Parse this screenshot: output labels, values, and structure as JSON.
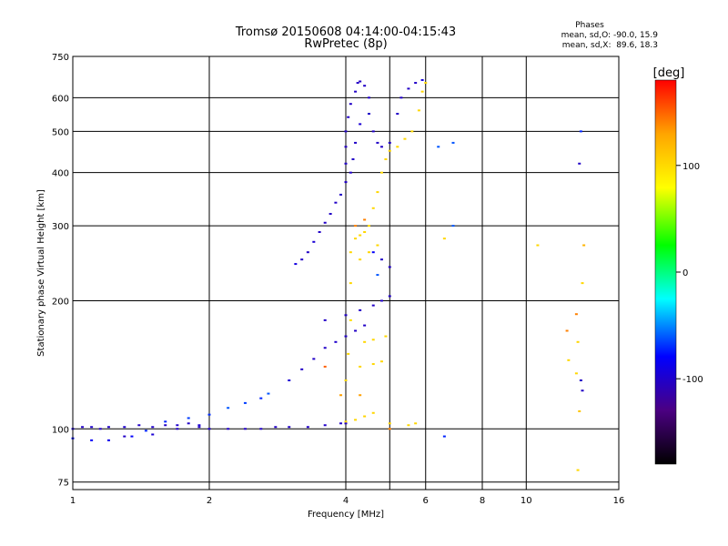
{
  "title_line1": "Tromsø 20150608 04:14:00-04:15:43",
  "title_line2": "RwPretec (8p)",
  "phase_box": {
    "heading": "Phases",
    "line_o": "mean, sd,O: -90.0, 15.9",
    "line_x": "mean, sd,X:  89.6, 18.3"
  },
  "colorbar": {
    "label": "[deg]",
    "range": [
      -180,
      180
    ],
    "ticks": [
      {
        "value": 100,
        "label": "100"
      },
      {
        "value": 0,
        "label": "0"
      },
      {
        "value": -100,
        "label": "-100"
      }
    ],
    "stops": [
      "#000000",
      "#4b0082",
      "#0000ff",
      "#00ffff",
      "#00ff00",
      "#ffff00",
      "#ffa500",
      "#ff0000"
    ]
  },
  "chart_data": {
    "type": "scatter",
    "title": "Tromsø 20150608 04:14:00-04:15:43",
    "subtitle": "RwPretec (8p)",
    "xlabel": "Frequency [MHz]",
    "ylabel": "Stationary phase Virtual Height [km]",
    "xscale": "log",
    "yscale": "log",
    "xlim": [
      1,
      16
    ],
    "ylim": [
      72,
      750
    ],
    "xticks": [
      {
        "value": 1,
        "label": "1"
      },
      {
        "value": 2,
        "label": "2"
      },
      {
        "value": 4,
        "label": "4"
      },
      {
        "value": 6,
        "label": "6"
      },
      {
        "value": 8,
        "label": "8"
      },
      {
        "value": 10,
        "label": "10"
      },
      {
        "value": 16,
        "label": "16"
      }
    ],
    "yticks": [
      {
        "value": 75,
        "label": "75"
      },
      {
        "value": 100,
        "label": "100"
      },
      {
        "value": 200,
        "label": "200"
      },
      {
        "value": 300,
        "label": "300"
      },
      {
        "value": 400,
        "label": "400"
      },
      {
        "value": 500,
        "label": "500"
      },
      {
        "value": 600,
        "label": "600"
      },
      {
        "value": 750,
        "label": "750"
      }
    ],
    "extra_vgrid": [
      5
    ],
    "grid": true,
    "color_scale": "phase (deg)",
    "points": [
      [
        1.0,
        100,
        -95
      ],
      [
        1.05,
        101,
        -100
      ],
      [
        1.1,
        101,
        -98
      ],
      [
        1.15,
        100,
        -102
      ],
      [
        1.2,
        101,
        -100
      ],
      [
        1.3,
        101,
        -97
      ],
      [
        1.4,
        102,
        -100
      ],
      [
        1.5,
        101,
        -99
      ],
      [
        1.6,
        102,
        -100
      ],
      [
        1.7,
        102,
        -98
      ],
      [
        1.8,
        103,
        -100
      ],
      [
        1.9,
        102,
        -96
      ],
      [
        2.0,
        100,
        -100
      ],
      [
        2.2,
        100,
        -100
      ],
      [
        2.4,
        100,
        -101
      ],
      [
        2.6,
        100,
        -100
      ],
      [
        2.8,
        101,
        -100
      ],
      [
        3.0,
        101,
        -100
      ],
      [
        3.3,
        101,
        -100
      ],
      [
        3.6,
        102,
        -99
      ],
      [
        3.9,
        103,
        -100
      ],
      [
        4.0,
        103,
        -100
      ],
      [
        1.0,
        95,
        -75
      ],
      [
        1.1,
        94,
        -80
      ],
      [
        1.2,
        94,
        -85
      ],
      [
        1.35,
        96,
        -78
      ],
      [
        1.45,
        99,
        -70
      ],
      [
        1.6,
        104,
        -70
      ],
      [
        1.8,
        106,
        -65
      ],
      [
        2.0,
        108,
        -68
      ],
      [
        2.2,
        112,
        -60
      ],
      [
        2.4,
        115,
        -65
      ],
      [
        2.6,
        118,
        -70
      ],
      [
        2.7,
        121,
        -60
      ],
      [
        1.3,
        96,
        -100
      ],
      [
        1.5,
        97,
        -95
      ],
      [
        1.7,
        100,
        -100
      ],
      [
        1.9,
        101,
        -100
      ],
      [
        3.0,
        130,
        -95
      ],
      [
        3.2,
        138,
        -100
      ],
      [
        3.4,
        146,
        -100
      ],
      [
        3.6,
        155,
        -100
      ],
      [
        3.8,
        160,
        -98
      ],
      [
        4.0,
        165,
        -100
      ],
      [
        4.2,
        170,
        -100
      ],
      [
        4.4,
        175,
        -100
      ],
      [
        3.1,
        244,
        -90
      ],
      [
        3.2,
        250,
        -100
      ],
      [
        3.3,
        260,
        -100
      ],
      [
        3.4,
        275,
        -95
      ],
      [
        3.5,
        290,
        -100
      ],
      [
        3.6,
        305,
        -100
      ],
      [
        3.7,
        320,
        -100
      ],
      [
        3.8,
        340,
        -100
      ],
      [
        3.9,
        355,
        -100
      ],
      [
        4.0,
        380,
        -100
      ],
      [
        4.0,
        420,
        -100
      ],
      [
        4.0,
        460,
        -102
      ],
      [
        4.0,
        500,
        -100
      ],
      [
        4.05,
        540,
        -100
      ],
      [
        4.1,
        580,
        -100
      ],
      [
        4.2,
        620,
        -100
      ],
      [
        4.25,
        650,
        -100
      ],
      [
        4.3,
        655,
        -102
      ],
      [
        4.4,
        640,
        -100
      ],
      [
        4.5,
        600,
        -100
      ],
      [
        4.5,
        550,
        -100
      ],
      [
        4.6,
        500,
        -100
      ],
      [
        4.7,
        470,
        -100
      ],
      [
        4.8,
        460,
        -100
      ],
      [
        5.0,
        470,
        -100
      ],
      [
        5.2,
        550,
        -100
      ],
      [
        5.3,
        600,
        -100
      ],
      [
        5.5,
        630,
        -100
      ],
      [
        5.7,
        650,
        -100
      ],
      [
        5.9,
        660,
        -90
      ],
      [
        4.1,
        400,
        -100
      ],
      [
        4.15,
        430,
        -100
      ],
      [
        4.2,
        470,
        -100
      ],
      [
        4.3,
        520,
        -95
      ],
      [
        4.6,
        260,
        -80
      ],
      [
        4.8,
        250,
        -100
      ],
      [
        5.0,
        240,
        -100
      ],
      [
        4.7,
        230,
        -60
      ],
      [
        3.6,
        180,
        -100
      ],
      [
        4.0,
        185,
        -100
      ],
      [
        4.3,
        190,
        -100
      ],
      [
        4.6,
        195,
        -100
      ],
      [
        4.8,
        200,
        -100
      ],
      [
        5.0,
        205,
        -100
      ],
      [
        4.0,
        104,
        100
      ],
      [
        4.2,
        105,
        100
      ],
      [
        4.4,
        107,
        102
      ],
      [
        4.6,
        109,
        100
      ],
      [
        5.0,
        103,
        100
      ],
      [
        5.5,
        102,
        100
      ],
      [
        5.7,
        103,
        100
      ],
      [
        4.0,
        130,
        100
      ],
      [
        4.05,
        150,
        100
      ],
      [
        4.1,
        180,
        95
      ],
      [
        4.1,
        220,
        100
      ],
      [
        4.1,
        260,
        100
      ],
      [
        4.2,
        280,
        100
      ],
      [
        4.3,
        285,
        100
      ],
      [
        4.4,
        290,
        100
      ],
      [
        4.5,
        300,
        100
      ],
      [
        4.6,
        330,
        100
      ],
      [
        4.7,
        360,
        100
      ],
      [
        4.8,
        400,
        100
      ],
      [
        4.9,
        430,
        100
      ],
      [
        5.0,
        450,
        100
      ],
      [
        5.2,
        460,
        100
      ],
      [
        5.4,
        480,
        100
      ],
      [
        5.6,
        500,
        100
      ],
      [
        5.8,
        560,
        100
      ],
      [
        5.9,
        620,
        100
      ],
      [
        6.0,
        650,
        100
      ],
      [
        4.3,
        140,
        100
      ],
      [
        4.6,
        142,
        100
      ],
      [
        4.8,
        144,
        100
      ],
      [
        4.4,
        160,
        100
      ],
      [
        4.6,
        162,
        100
      ],
      [
        4.9,
        165,
        100
      ],
      [
        4.3,
        250,
        100
      ],
      [
        4.5,
        260,
        100
      ],
      [
        4.7,
        270,
        100
      ],
      [
        4.2,
        300,
        140
      ],
      [
        4.4,
        310,
        140
      ],
      [
        3.6,
        140,
        150
      ],
      [
        3.9,
        120,
        130
      ],
      [
        4.3,
        120,
        130
      ],
      [
        5.0,
        100,
        140
      ],
      [
        6.4,
        460,
        -60
      ],
      [
        6.6,
        280,
        100
      ],
      [
        6.9,
        300,
        -60
      ],
      [
        6.6,
        96,
        -70
      ],
      [
        6.9,
        470,
        -60
      ],
      [
        10.6,
        270,
        100
      ],
      [
        12.3,
        170,
        140
      ],
      [
        12.4,
        145,
        100
      ],
      [
        12.9,
        186,
        140
      ],
      [
        12.9,
        135,
        100
      ],
      [
        13.0,
        80,
        100
      ],
      [
        13.1,
        110,
        110
      ],
      [
        13.2,
        500,
        -70
      ],
      [
        13.1,
        420,
        -100
      ],
      [
        13.2,
        130,
        -100
      ],
      [
        13.3,
        123,
        -100
      ],
      [
        13.0,
        160,
        100
      ],
      [
        13.3,
        220,
        100
      ],
      [
        13.4,
        270,
        120
      ]
    ]
  }
}
